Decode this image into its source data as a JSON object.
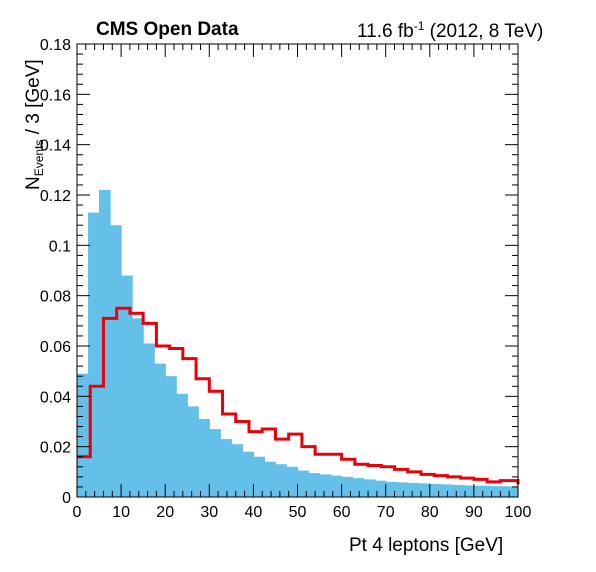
{
  "header": {
    "experiment_label": "CMS Open Data",
    "lumi_value": "11.6 fb",
    "lumi_exponent": "-1",
    "lumi_conditions": " (2012, 8 TeV)"
  },
  "chart_data": {
    "type": "bar",
    "xlabel": "Pt 4 leptons [GeV]",
    "ylabel_main": "N",
    "ylabel_sub": "Events",
    "ylabel_suffix": " / 3 [GeV]",
    "xlim": [
      0,
      100
    ],
    "ylim": [
      0,
      0.18
    ],
    "bin_width": 3,
    "x_ticks": [
      0,
      10,
      20,
      30,
      40,
      50,
      60,
      70,
      80,
      90,
      100
    ],
    "y_ticks": [
      0,
      0.02,
      0.04,
      0.06,
      0.08,
      0.1,
      0.12,
      0.14,
      0.16,
      0.18
    ],
    "y_tick_labels": [
      "0",
      "0.02",
      "0.04",
      "0.06",
      "0.08",
      "0.1",
      "0.12",
      "0.14",
      "0.16",
      "0.18"
    ],
    "colors": {
      "filled": "#64c0e8",
      "line": "#e8000b"
    },
    "series": [
      {
        "style": "filled-histogram",
        "bin_edges": [
          0,
          2.5,
          5,
          7.5,
          10,
          12.5,
          15,
          17.5,
          20,
          22.5,
          25,
          27.5,
          30,
          32.5,
          35,
          37.5,
          40,
          42.5,
          45,
          47.5,
          50,
          52.5,
          55,
          57.5,
          60,
          62.5,
          65,
          67.5,
          70,
          72.5,
          75,
          77.5,
          80,
          82.5,
          85,
          87.5,
          90,
          92.5,
          95,
          97.5,
          100
        ],
        "values": [
          0.049,
          0.113,
          0.122,
          0.108,
          0.088,
          0.071,
          0.061,
          0.053,
          0.048,
          0.041,
          0.036,
          0.031,
          0.027,
          0.023,
          0.021,
          0.018,
          0.016,
          0.014,
          0.013,
          0.012,
          0.0105,
          0.0095,
          0.009,
          0.0085,
          0.008,
          0.0075,
          0.007,
          0.0065,
          0.006,
          0.0058,
          0.0056,
          0.0054,
          0.0052,
          0.005,
          0.0048,
          0.0046,
          0.0045,
          0.0044,
          0.0043,
          0.0042
        ]
      },
      {
        "style": "step-line",
        "bin_edges": [
          0,
          3,
          6,
          9,
          12,
          15,
          18,
          21,
          24,
          27,
          30,
          33,
          36,
          39,
          42,
          45,
          48,
          51,
          54,
          57,
          60,
          63,
          66,
          69,
          72,
          75,
          78,
          81,
          84,
          87,
          90,
          93,
          96,
          100
        ],
        "values": [
          0.016,
          0.044,
          0.071,
          0.075,
          0.073,
          0.069,
          0.06,
          0.059,
          0.055,
          0.047,
          0.042,
          0.033,
          0.03,
          0.026,
          0.027,
          0.023,
          0.025,
          0.02,
          0.017,
          0.017,
          0.015,
          0.013,
          0.0125,
          0.012,
          0.011,
          0.01,
          0.009,
          0.0085,
          0.008,
          0.0075,
          0.007,
          0.006,
          0.0065,
          0.005
        ]
      }
    ]
  }
}
